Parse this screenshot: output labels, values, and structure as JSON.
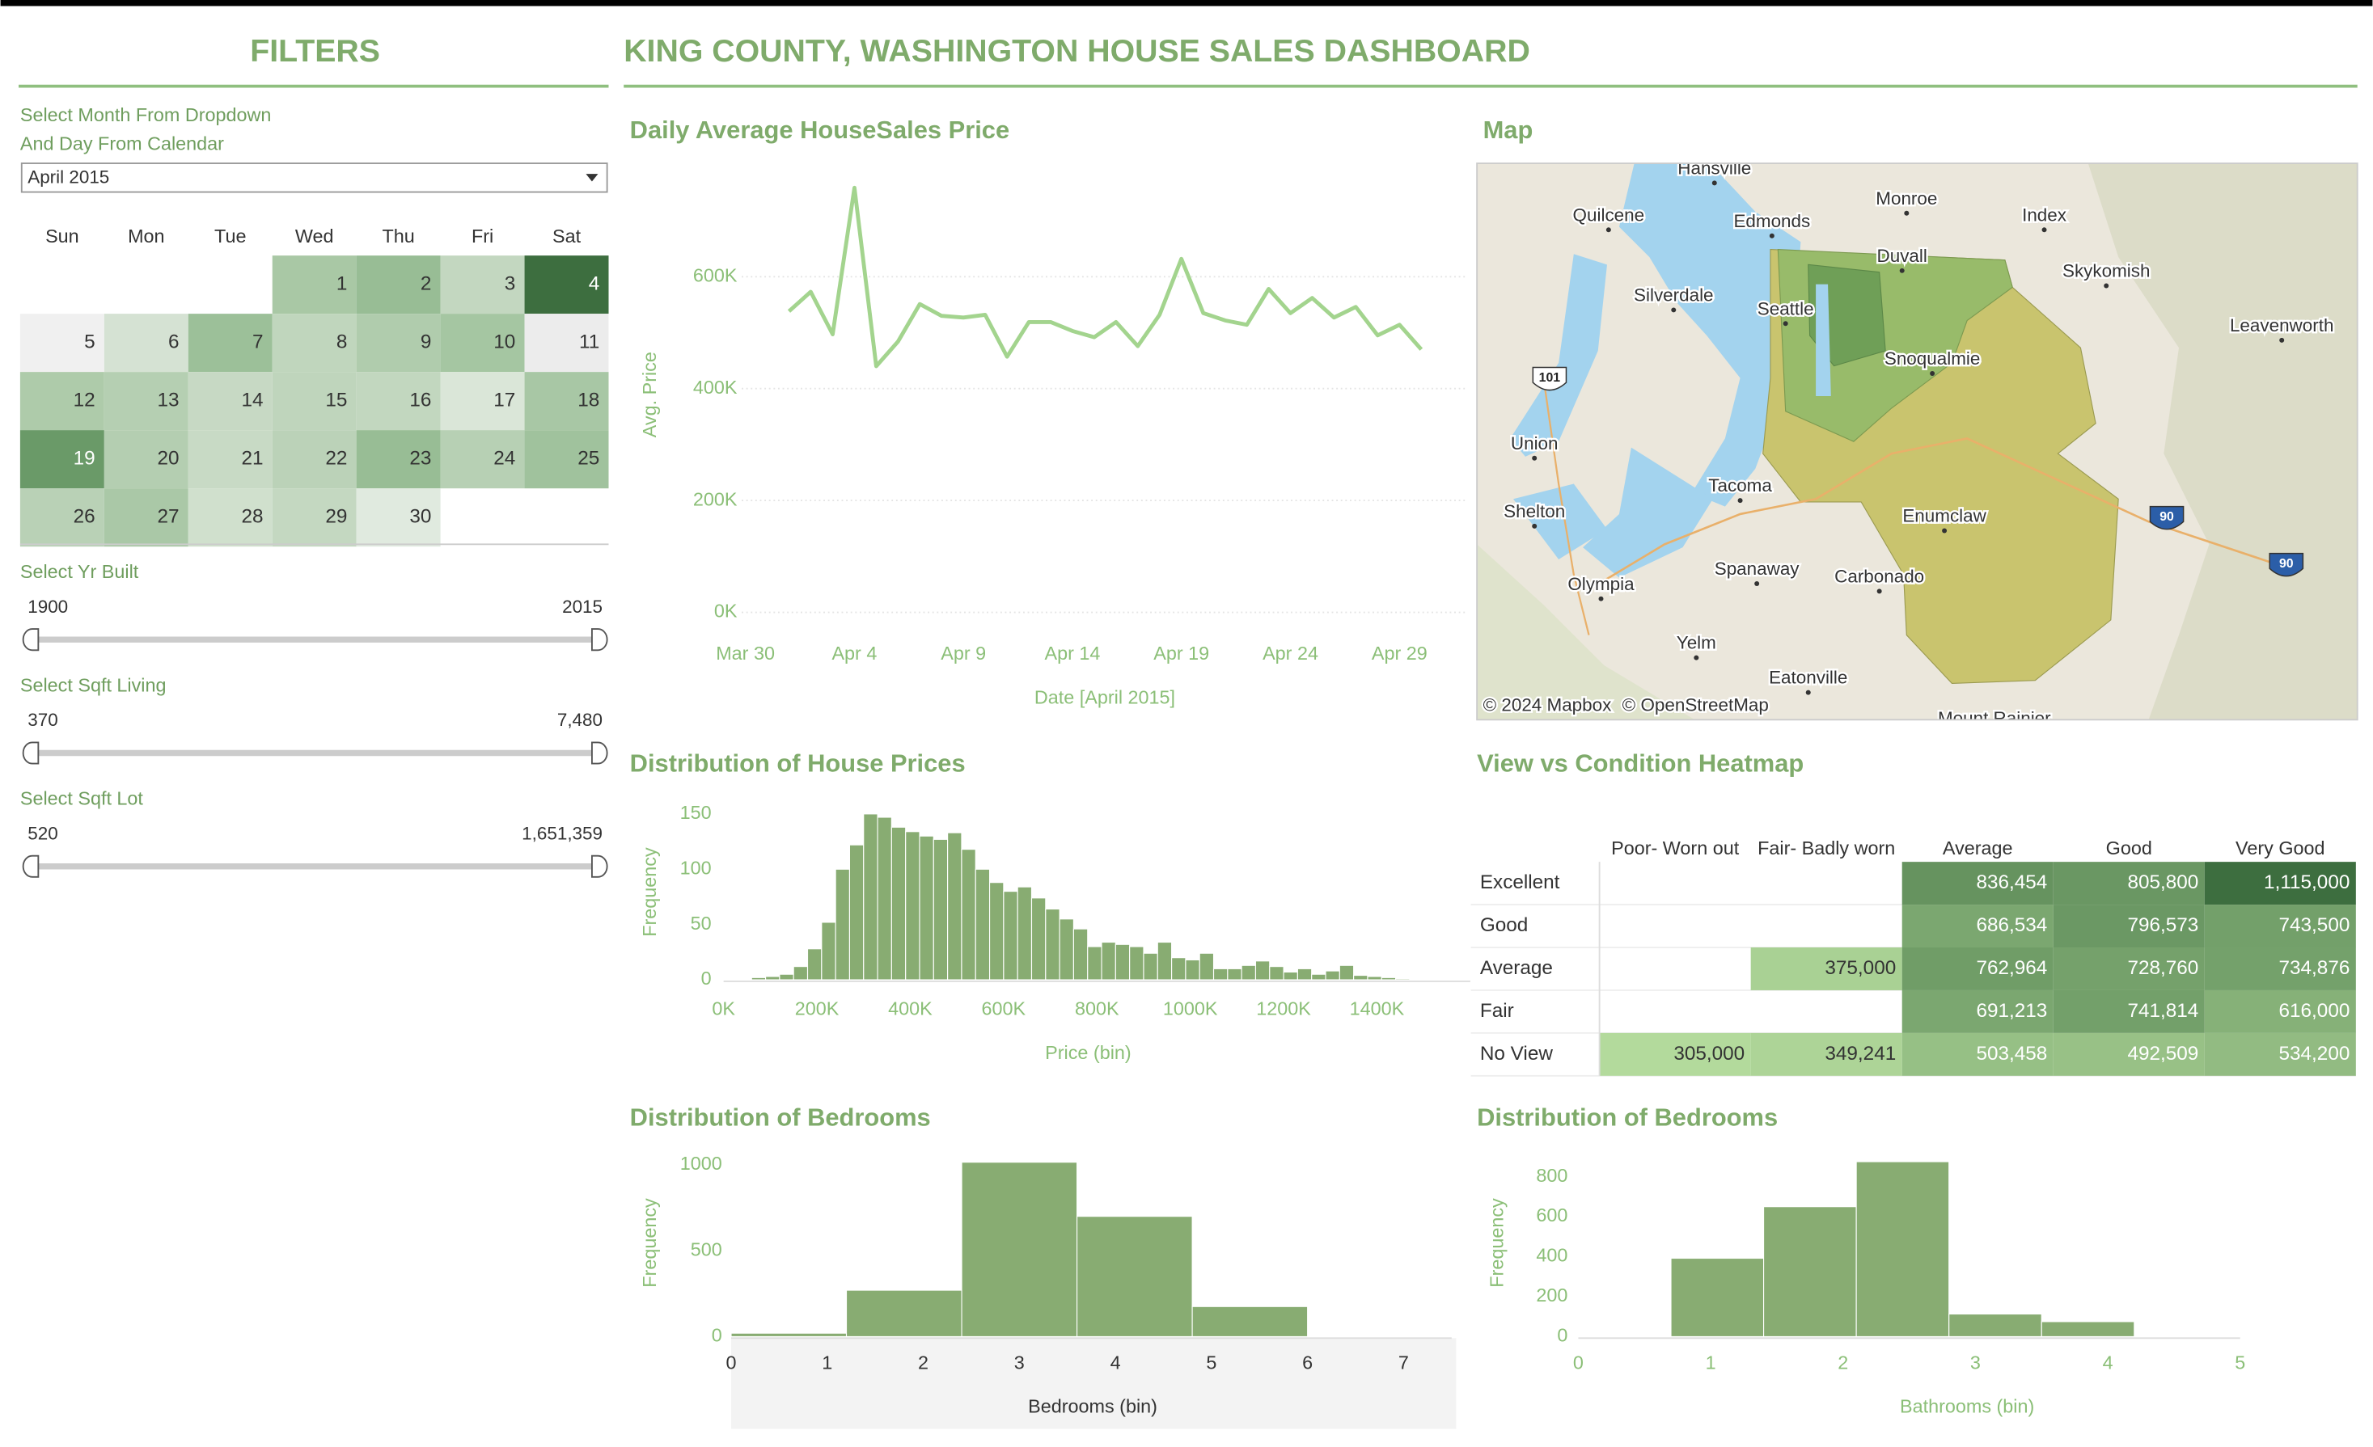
{
  "header": {
    "filters_title": "FILTERS",
    "title": "KING COUNTY, WASHINGTON HOUSE SALES DASHBOARD"
  },
  "filters": {
    "month_label": [
      "Select Month From Dropdown",
      "And Day From Calendar"
    ],
    "month_value": "April 2015",
    "calendar": {
      "weekdays": [
        "Sun",
        "Mon",
        "Tue",
        "Wed",
        "Thu",
        "Fri",
        "Sat"
      ],
      "days": [
        {
          "day": 1,
          "color": "#a9c8a5"
        },
        {
          "day": 2,
          "color": "#98bd95"
        },
        {
          "day": 3,
          "color": "#c3d7c0"
        },
        {
          "day": 4,
          "color": "#3d6e3f"
        },
        {
          "day": 5,
          "color": "#f0f0f0"
        },
        {
          "day": 6,
          "color": "#d5e2d3"
        },
        {
          "day": 7,
          "color": "#9cc099"
        },
        {
          "day": 8,
          "color": "#c0d6bd"
        },
        {
          "day": 9,
          "color": "#b0ccad"
        },
        {
          "day": 10,
          "color": "#a5c6a2"
        },
        {
          "day": 11,
          "color": "#ececec"
        },
        {
          "day": 12,
          "color": "#aecbaa"
        },
        {
          "day": 13,
          "color": "#b5cfb2"
        },
        {
          "day": 14,
          "color": "#c7d9c4"
        },
        {
          "day": 15,
          "color": "#bfd5bc"
        },
        {
          "day": 16,
          "color": "#c2d7bf"
        },
        {
          "day": 17,
          "color": "#dae6d8"
        },
        {
          "day": 18,
          "color": "#a8c7a5"
        },
        {
          "day": 19,
          "color": "#6a9a68"
        },
        {
          "day": 20,
          "color": "#b4ceb1"
        },
        {
          "day": 21,
          "color": "#c8dac5"
        },
        {
          "day": 22,
          "color": "#bbd2b8"
        },
        {
          "day": 23,
          "color": "#98bd95"
        },
        {
          "day": 24,
          "color": "#b7d0b4"
        },
        {
          "day": 25,
          "color": "#a0c29d"
        },
        {
          "day": 26,
          "color": "#b9d1b6"
        },
        {
          "day": 27,
          "color": "#aac8a7"
        },
        {
          "day": 28,
          "color": "#d0e0cd"
        },
        {
          "day": 29,
          "color": "#c4d8c1"
        },
        {
          "day": 30,
          "color": "#e0eadf"
        }
      ]
    },
    "sliders": [
      {
        "label": "Select Yr Built",
        "min": "1900",
        "max": "2015"
      },
      {
        "label": "Select Sqft Living",
        "min": "370",
        "max": "7,480"
      },
      {
        "label": "Select Sqft Lot",
        "min": "520",
        "max": "1,651,359"
      }
    ]
  },
  "map": {
    "title": "Map",
    "places": [
      "Hansville",
      "Quilcene",
      "Edmonds",
      "Monroe",
      "Index",
      "Duvall",
      "Skykomish",
      "Silverdale",
      "Seattle",
      "Leavenworth",
      "Snoqualmie",
      "Union",
      "Shelton",
      "Tacoma",
      "Olympia",
      "Spanaway",
      "Carbonado",
      "Yelm",
      "Eatonville",
      "Enumclaw",
      "Mount Rainier"
    ],
    "shields": [
      "101",
      "90",
      "90"
    ],
    "attribution": [
      "© 2024 Mapbox",
      "© OpenStreetMap"
    ]
  },
  "chart_data": [
    {
      "type": "line",
      "title": "Daily Average HouseSales Price",
      "x_label": "Date [April 2015]",
      "y_label": "Avg. Price",
      "color": "#a3d48e",
      "grid": true,
      "x": [
        "2015-04-01",
        "2015-04-02",
        "2015-04-03",
        "2015-04-04",
        "2015-04-05",
        "2015-04-06",
        "2015-04-07",
        "2015-04-08",
        "2015-04-09",
        "2015-04-10",
        "2015-04-11",
        "2015-04-12",
        "2015-04-13",
        "2015-04-14",
        "2015-04-15",
        "2015-04-16",
        "2015-04-17",
        "2015-04-18",
        "2015-04-19",
        "2015-04-20",
        "2015-04-21",
        "2015-04-22",
        "2015-04-23",
        "2015-04-24",
        "2015-04-25",
        "2015-04-26",
        "2015-04-27",
        "2015-04-28",
        "2015-04-29",
        "2015-04-30"
      ],
      "values": [
        538000,
        573000,
        497000,
        759000,
        440000,
        484000,
        551000,
        530000,
        527000,
        532000,
        457000,
        519000,
        519000,
        503000,
        492000,
        519000,
        476000,
        532000,
        632000,
        535000,
        522000,
        514000,
        578000,
        535000,
        562000,
        527000,
        546000,
        495000,
        514000,
        470000
      ],
      "xlim": [
        "2015-03-29",
        "2015-05-02"
      ],
      "xticks": [
        {
          "value": "2015-03-30",
          "label": "Mar 30"
        },
        {
          "value": "2015-04-04",
          "label": "Apr 4"
        },
        {
          "value": "2015-04-09",
          "label": "Apr 9"
        },
        {
          "value": "2015-04-14",
          "label": "Apr 14"
        },
        {
          "value": "2015-04-19",
          "label": "Apr 19"
        },
        {
          "value": "2015-04-24",
          "label": "Apr 24"
        },
        {
          "value": "2015-04-29",
          "label": "Apr 29"
        }
      ],
      "ylim": [
        0,
        800000
      ],
      "yticks": [
        {
          "value": 0,
          "label": "0K"
        },
        {
          "value": 200000,
          "label": "200K"
        },
        {
          "value": 400000,
          "label": "400K"
        },
        {
          "value": 600000,
          "label": "600K"
        }
      ]
    },
    {
      "type": "histogram",
      "title": "Distribution of House Prices",
      "x_label": "Price (bin)",
      "y_label": "Frequency",
      "color": "#88ac72",
      "grid": false,
      "bins": [
        60000,
        90000,
        120000,
        150000,
        180000,
        210000,
        240000,
        270000,
        300000,
        330000,
        360000,
        390000,
        420000,
        450000,
        480000,
        510000,
        540000,
        570000,
        600000,
        630000,
        660000,
        690000,
        720000,
        750000,
        780000,
        810000,
        840000,
        870000,
        900000,
        930000,
        960000,
        990000,
        1020000,
        1050000,
        1080000,
        1110000,
        1140000,
        1170000,
        1200000,
        1230000,
        1260000,
        1290000,
        1320000,
        1350000,
        1380000,
        1410000,
        1440000,
        1470000
      ],
      "values": [
        2,
        3,
        5,
        12,
        28,
        52,
        100,
        122,
        150,
        147,
        138,
        134,
        130,
        127,
        133,
        118,
        100,
        88,
        80,
        84,
        74,
        64,
        55,
        46,
        30,
        34,
        32,
        30,
        24,
        34,
        20,
        18,
        24,
        10,
        10,
        13,
        17,
        12,
        7,
        10,
        5,
        8,
        13,
        4,
        3,
        2,
        1
      ],
      "xlim": [
        0,
        1600000
      ],
      "xticks": [
        {
          "value": 0,
          "label": "0K"
        },
        {
          "value": 200000,
          "label": "200K"
        },
        {
          "value": 400000,
          "label": "400K"
        },
        {
          "value": 600000,
          "label": "600K"
        },
        {
          "value": 800000,
          "label": "800K"
        },
        {
          "value": 1000000,
          "label": "1000K"
        },
        {
          "value": 1200000,
          "label": "1200K"
        },
        {
          "value": 1400000,
          "label": "1400K"
        }
      ],
      "ylim": [
        0,
        160
      ],
      "yticks": [
        0,
        50,
        100,
        150
      ]
    },
    {
      "type": "heatmap",
      "title": "View vs Condition Heatmap",
      "columns": [
        "Poor- Worn out",
        "Fair- Badly worn",
        "Average",
        "Good",
        "Very Good"
      ],
      "rows": [
        "Excellent",
        "Good",
        "Average",
        "Fair",
        "No View"
      ],
      "values": [
        [
          null,
          null,
          836454,
          805800,
          1115000
        ],
        [
          null,
          null,
          686534,
          796573,
          743500
        ],
        [
          null,
          375000,
          762964,
          728760,
          734876
        ],
        [
          null,
          null,
          691213,
          741814,
          616000
        ],
        [
          305000,
          349241,
          503458,
          492509,
          534200
        ]
      ],
      "value_labels": [
        [
          null,
          null,
          "836,454",
          "805,800",
          "1,115,000"
        ],
        [
          null,
          null,
          "686,534",
          "796,573",
          "743,500"
        ],
        [
          null,
          "375,000",
          "762,964",
          "728,760",
          "734,876"
        ],
        [
          null,
          null,
          "691,213",
          "741,814",
          "616,000"
        ],
        [
          "305,000",
          "349,241",
          "503,458",
          "492,509",
          "534,200"
        ]
      ],
      "color_range": [
        "#b3da9c",
        "#3d6e3f"
      ]
    },
    {
      "type": "histogram",
      "title": "Distribution of Bedrooms",
      "x_label": "Bedrooms (bin)",
      "y_label": "Frequency",
      "color": "#88ac72",
      "grid": false,
      "bins": [
        0,
        1.2,
        2.4,
        3.6,
        4.8,
        6
      ],
      "values": [
        20,
        270,
        1015,
        700,
        175
      ],
      "xlim": [
        0,
        7.5
      ],
      "xticks": [
        0,
        1,
        2,
        3,
        4,
        5,
        6,
        7
      ],
      "ylim": [
        0,
        1100
      ],
      "yticks": [
        0,
        500,
        1000
      ]
    },
    {
      "type": "histogram",
      "title": "Distribution of Bedrooms",
      "x_label": "Bathrooms (bin)",
      "y_label": "Frequency",
      "color": "#88ac72",
      "grid": false,
      "bins": [
        0.7,
        1.4,
        2.1,
        2.8,
        3.5,
        4.2
      ],
      "values": [
        392,
        650,
        875,
        113,
        75
      ],
      "xlim": [
        0,
        5
      ],
      "xticks": [
        0,
        1,
        2,
        3,
        4,
        5
      ],
      "ylim": [
        0,
        900
      ],
      "yticks": [
        0,
        200,
        400,
        600,
        800
      ]
    }
  ]
}
